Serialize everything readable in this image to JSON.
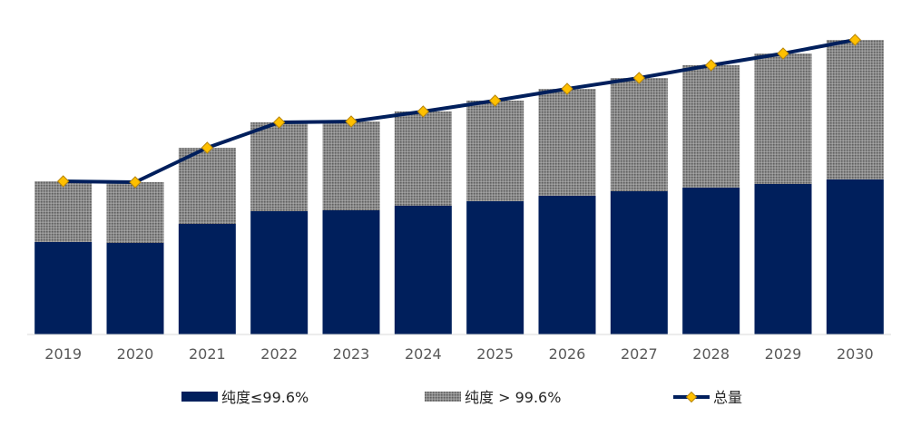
{
  "chart_data": {
    "type": "bar",
    "stacked": true,
    "title": "",
    "xlabel": "",
    "ylabel": "",
    "categories": [
      "2019",
      "2020",
      "2021",
      "2022",
      "2023",
      "2024",
      "2025",
      "2026",
      "2027",
      "2028",
      "2029",
      "2030"
    ],
    "series": [
      {
        "name": "纯度≤99.6%",
        "type": "bar",
        "color": "#001f5c",
        "values": [
          102,
          101,
          122,
          136,
          137,
          142,
          147,
          153,
          158,
          162,
          166,
          171
        ]
      },
      {
        "name": "纯度 > 99.6%",
        "type": "bar",
        "pattern": "gray-dotted",
        "color": "#7f7f7f",
        "values": [
          67,
          67,
          84,
          98,
          98,
          104,
          111,
          118,
          125,
          135,
          144,
          154
        ]
      },
      {
        "name": "总量",
        "type": "line",
        "color": "#001f5c",
        "marker": "diamond",
        "marker_color": "#ffc000",
        "values": [
          169,
          168,
          206,
          234,
          235,
          246,
          258,
          271,
          283,
          297,
          310,
          325
        ]
      }
    ],
    "ylim": [
      0,
      330
    ],
    "grid": false,
    "legend_position": "bottom"
  }
}
